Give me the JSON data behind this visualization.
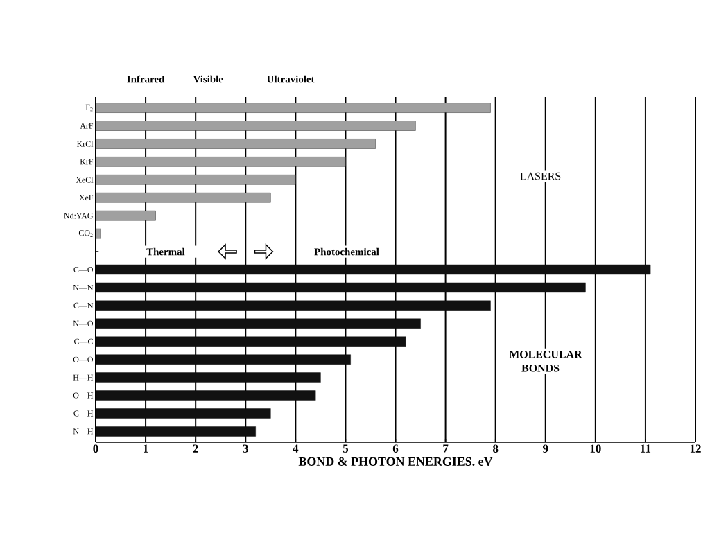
{
  "chart_data": {
    "type": "bar",
    "orientation": "horizontal",
    "xlabel": "BOND & PHOTON ENERGIES. eV",
    "categories": [
      "F$_{2}$",
      "ArF",
      "KrCl",
      "KrF",
      "XeCl",
      "XeF",
      "Nd:YAG",
      "CO$_{2}$",
      null,
      "C—O",
      "N—N",
      "C—N",
      "N—O",
      "C—C",
      "O—O",
      "H—H",
      "O—H",
      "C—H",
      "N—H"
    ],
    "series": [
      {
        "color": "#a0a0a0",
        "values": [
          7.9,
          6.4,
          5.6,
          5.0,
          4.0,
          3.5,
          1.2,
          0.1,
          null,
          null,
          null,
          null,
          null,
          null,
          null,
          null,
          null,
          null,
          null
        ]
      },
      {
        "color": "#111111",
        "values": [
          null,
          null,
          null,
          null,
          null,
          null,
          null,
          null,
          null,
          11.1,
          9.8,
          7.9,
          6.5,
          6.2,
          5.1,
          4.5,
          4.4,
          3.5,
          3.2
        ]
      }
    ],
    "xlim": [
      0,
      12
    ],
    "xticks": [
      0,
      1,
      2,
      3,
      4,
      5,
      6,
      7,
      8,
      9,
      10,
      11,
      12
    ],
    "grid": "x",
    "annotations": [
      "Infrared",
      "Visible",
      "Ultraviolet",
      "Thermal",
      "Photochemical",
      "LASERS",
      "MOLECULAR BONDS"
    ]
  }
}
